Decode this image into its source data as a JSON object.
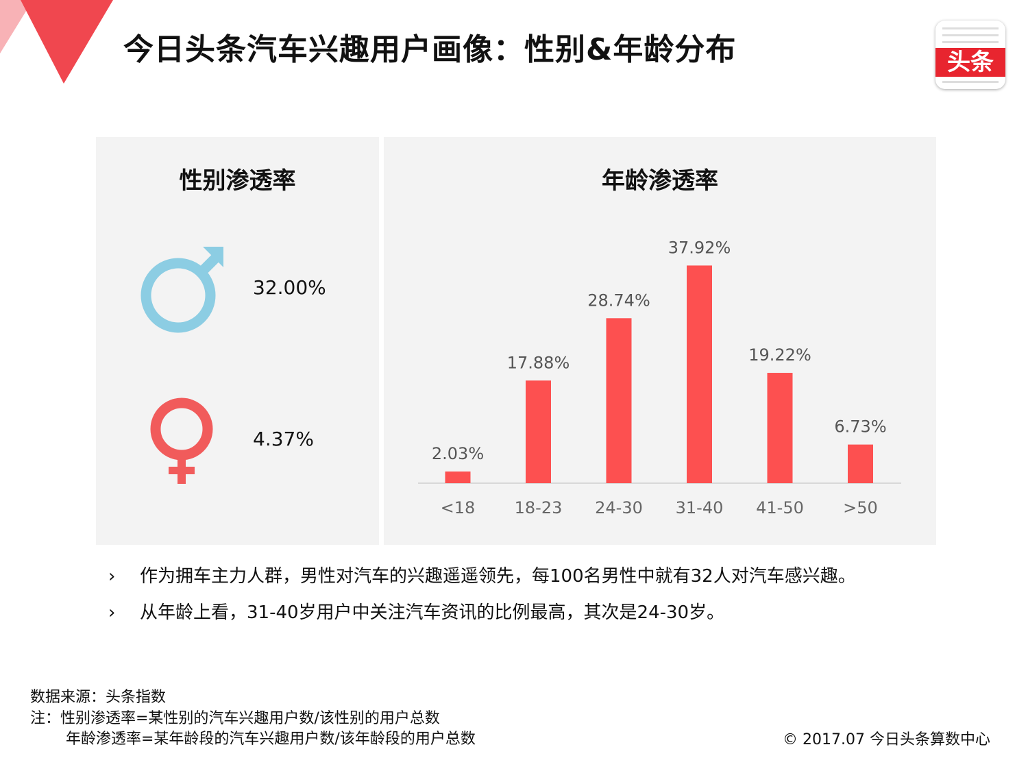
{
  "header": {
    "title": "今日头条汽车兴趣用户画像：性别&年龄分布",
    "logo_text": "头条"
  },
  "gender_panel": {
    "title": "性别渗透率",
    "male_value": "32.00%",
    "female_value": "4.37%",
    "male_color": "#8ccde3",
    "female_color": "#f15b5b"
  },
  "age_panel": {
    "title": "年龄渗透率"
  },
  "chart_data": {
    "type": "bar",
    "title": "年龄渗透率",
    "categories": [
      "<18",
      "18-23",
      "24-30",
      "31-40",
      "41-50",
      ">50"
    ],
    "values": [
      2.03,
      17.88,
      28.74,
      37.92,
      19.22,
      6.73
    ],
    "value_labels": [
      "2.03%",
      "17.88%",
      "28.74%",
      "37.92%",
      "19.22%",
      "6.73%"
    ],
    "unit": "%",
    "ylim": [
      0,
      40
    ],
    "bar_color": "#fd5050",
    "grid": false
  },
  "bullets": [
    "作为拥车主力人群，男性对汽车的兴趣遥遥领先，每100名男性中就有32人对汽车感兴趣。",
    "从年龄上看，31-40岁用户中关注汽车资讯的比例最高，其次是24-30岁。"
  ],
  "bullet_mark": "›",
  "footer": {
    "source": "数据来源：头条指数",
    "note1": "注：性别渗透率=某性别的汽车兴趣用户数/该性别的用户总数",
    "note2": "年龄渗透率=某年龄段的汽车兴趣用户数/该年龄段的用户总数",
    "copyright": "© 2017.07 今日头条算数中心"
  },
  "colors": {
    "accent": "#fd5050",
    "corner_dark": "#f0474f",
    "corner_light": "#f8b2b6"
  }
}
